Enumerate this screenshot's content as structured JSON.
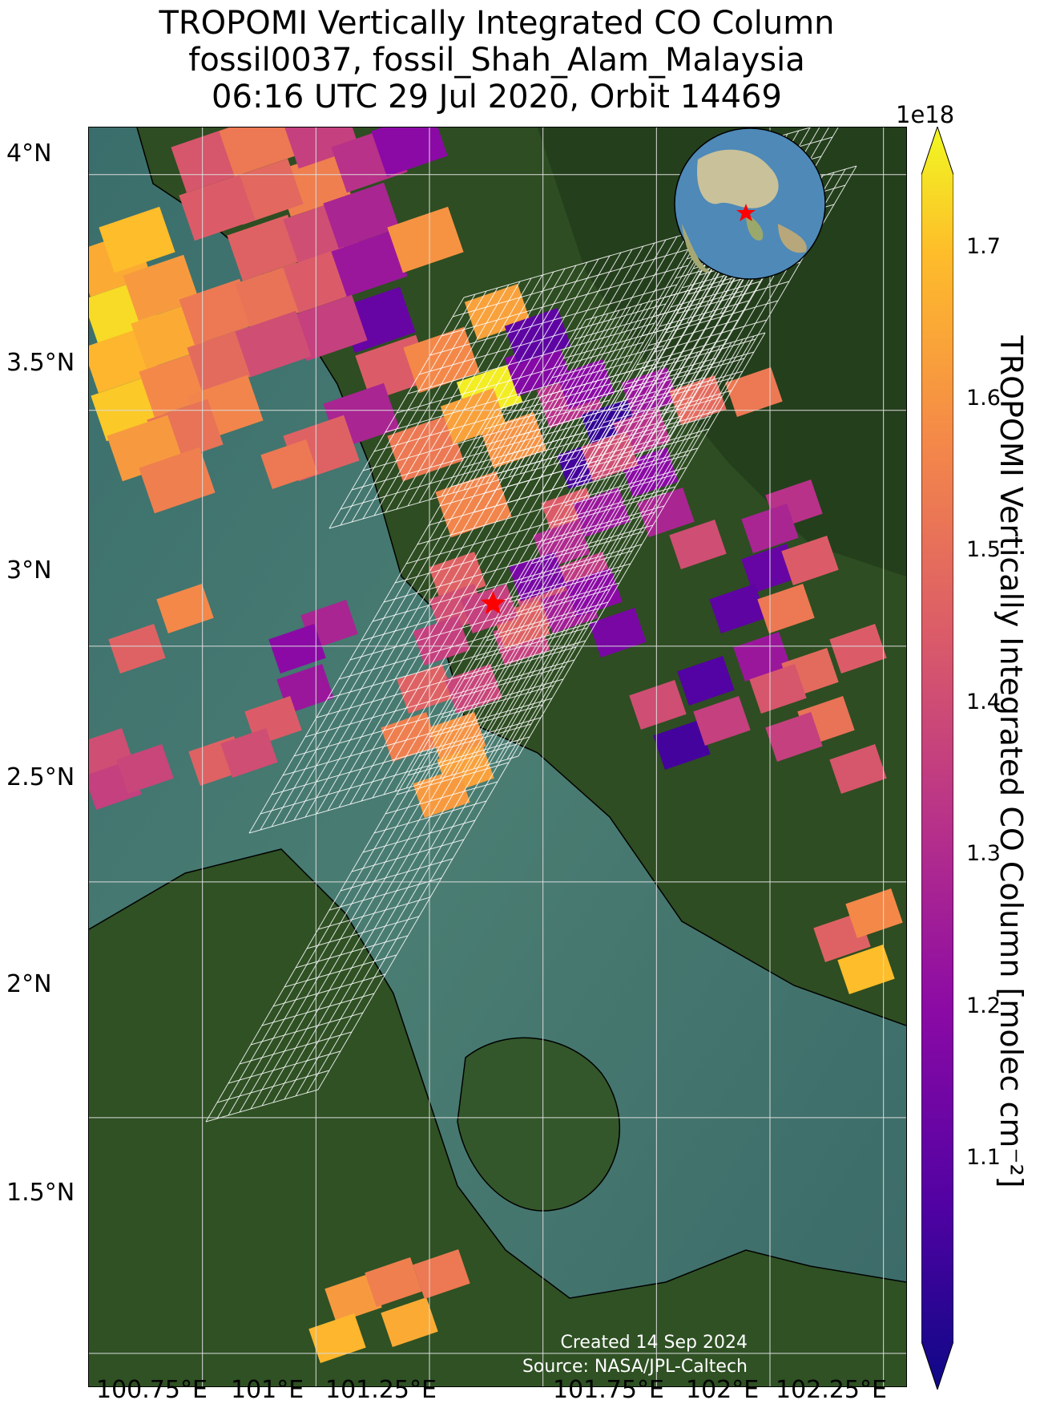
{
  "title": {
    "line1": "TROPOMI Vertically Integrated CO Column",
    "line2": "fossil0037, fossil_Shah_Alam_Malaysia",
    "line3": "06:16 UTC 29 Jul 2020, Orbit 14469"
  },
  "map": {
    "lon_range": [
      100.5,
      102.3
    ],
    "lat_range": [
      1.43,
      4.1
    ],
    "lat_ticks": [
      "4°N",
      "3.5°N",
      "3°N",
      "2.5°N",
      "2°N",
      "1.5°N"
    ],
    "lon_ticks": [
      "100.75°E",
      "101°E",
      "101.25°E",
      "101.75°E",
      "102°E",
      "102.25°E"
    ],
    "site_marker": {
      "name": "fossil_Shah_Alam_Malaysia",
      "lon": 101.39,
      "lat": 3.09,
      "color": "#ff0000"
    },
    "inset_globe": "globe-icon"
  },
  "colorbar": {
    "exponent_label": "1e18",
    "label": "TROPOMI Vertically Integrated CO Column [molec cm⁻²]",
    "ticks": [
      "1.7",
      "1.6",
      "1.5",
      "1.4",
      "1.3",
      "1.2",
      "1.1"
    ],
    "range": [
      1.02,
      1.75
    ],
    "colormap": "plasma",
    "extend": "both"
  },
  "credits": {
    "created": "Created 14 Sep 2024",
    "source": "Source: NASA/JPL-Caltech"
  },
  "colors": {
    "ocean": "#3d6d6a",
    "land": "#2f4f25",
    "grid": "#dcdcdc",
    "footprint_grid": "#ffffff"
  }
}
